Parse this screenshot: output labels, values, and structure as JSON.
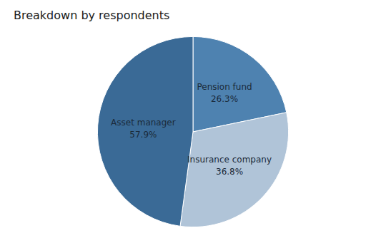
{
  "chart_data": {
    "type": "pie",
    "title": "Breakdown by respondents",
    "categories": [
      "Pension fund",
      "Insurance company",
      "Asset manager"
    ],
    "values": [
      26.3,
      36.8,
      57.9
    ],
    "value_labels": [
      "26.3%",
      "36.8%",
      "57.9%"
    ],
    "colors": [
      "#4e82b0",
      "#b0c4d8",
      "#3a6a96"
    ],
    "data_labels": true
  }
}
